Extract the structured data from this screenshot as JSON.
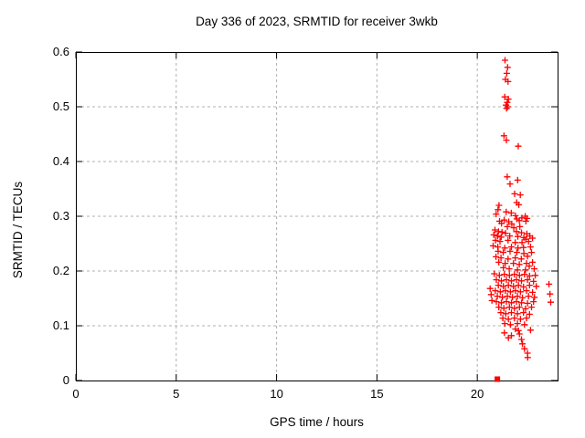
{
  "chart_data": {
    "type": "scatter",
    "title": "Day 336 of 2023, SRMTID for receiver 3wkb",
    "xlabel": "GPS time / hours",
    "ylabel": "SRMTID / TECUs",
    "xlim": [
      0,
      24
    ],
    "ylim": [
      0,
      0.6
    ],
    "grid": true,
    "legend": "none",
    "xticks": [
      {
        "v": 0,
        "label": "0"
      },
      {
        "v": 5,
        "label": "5"
      },
      {
        "v": 10,
        "label": "10"
      },
      {
        "v": 15,
        "label": "15"
      },
      {
        "v": 20,
        "label": "20"
      }
    ],
    "yticks": [
      {
        "v": 0,
        "label": "0"
      },
      {
        "v": 0.1,
        "label": "0.1"
      },
      {
        "v": 0.2,
        "label": "0.2"
      },
      {
        "v": 0.3,
        "label": "0.3"
      },
      {
        "v": 0.4,
        "label": "0.4"
      },
      {
        "v": 0.5,
        "label": "0.5"
      },
      {
        "v": 0.6,
        "label": "0.6"
      }
    ],
    "colors": {
      "marker": "#ff0000",
      "grid": "#b0b0b0",
      "border": "#000000",
      "background": "#ffffff"
    },
    "marker": "plus",
    "zero_marker": {
      "shape": "filled-square",
      "t": 21.0,
      "v": 0.0
    },
    "points": [
      [
        21.38,
        0.585
      ],
      [
        21.51,
        0.572
      ],
      [
        21.47,
        0.561
      ],
      [
        21.4,
        0.55
      ],
      [
        21.53,
        0.546
      ],
      [
        21.37,
        0.518
      ],
      [
        21.55,
        0.514
      ],
      [
        21.49,
        0.508
      ],
      [
        21.43,
        0.503
      ],
      [
        21.52,
        0.5
      ],
      [
        21.46,
        0.497
      ],
      [
        21.33,
        0.447
      ],
      [
        21.45,
        0.439
      ],
      [
        22.04,
        0.428
      ],
      [
        21.49,
        0.372
      ],
      [
        21.63,
        0.359
      ],
      [
        22.01,
        0.366
      ],
      [
        21.86,
        0.341
      ],
      [
        22.14,
        0.339
      ],
      [
        21.96,
        0.325
      ],
      [
        22.07,
        0.321
      ],
      [
        21.08,
        0.32
      ],
      [
        21.03,
        0.312
      ],
      [
        20.94,
        0.304
      ],
      [
        21.44,
        0.308
      ],
      [
        21.69,
        0.306
      ],
      [
        21.9,
        0.301
      ],
      [
        22.39,
        0.3
      ],
      [
        22.48,
        0.296
      ],
      [
        21.11,
        0.291
      ],
      [
        21.34,
        0.293
      ],
      [
        21.57,
        0.29
      ],
      [
        21.97,
        0.295
      ],
      [
        22.09,
        0.292
      ],
      [
        22.22,
        0.297
      ],
      [
        22.42,
        0.291
      ],
      [
        21.21,
        0.287
      ],
      [
        21.72,
        0.286
      ],
      [
        21.5,
        0.281
      ],
      [
        21.82,
        0.279
      ],
      [
        22.12,
        0.281
      ],
      [
        20.88,
        0.275
      ],
      [
        21.06,
        0.272
      ],
      [
        21.23,
        0.271
      ],
      [
        21.41,
        0.269
      ],
      [
        21.95,
        0.272
      ],
      [
        22.2,
        0.27
      ],
      [
        22.47,
        0.268
      ],
      [
        20.82,
        0.266
      ],
      [
        21.01,
        0.264
      ],
      [
        21.19,
        0.262
      ],
      [
        21.62,
        0.264
      ],
      [
        22.02,
        0.263
      ],
      [
        22.32,
        0.261
      ],
      [
        22.62,
        0.264
      ],
      [
        22.75,
        0.26
      ],
      [
        20.91,
        0.256
      ],
      [
        21.13,
        0.254
      ],
      [
        21.53,
        0.256
      ],
      [
        21.89,
        0.252
      ],
      [
        22.23,
        0.252
      ],
      [
        22.55,
        0.254
      ],
      [
        22.42,
        0.258
      ],
      [
        20.79,
        0.246
      ],
      [
        21.02,
        0.244
      ],
      [
        21.37,
        0.242
      ],
      [
        21.7,
        0.244
      ],
      [
        22.03,
        0.242
      ],
      [
        22.3,
        0.243
      ],
      [
        22.65,
        0.244
      ],
      [
        21.04,
        0.236
      ],
      [
        21.29,
        0.234
      ],
      [
        21.63,
        0.236
      ],
      [
        21.97,
        0.234
      ],
      [
        22.32,
        0.232
      ],
      [
        22.7,
        0.234
      ],
      [
        20.93,
        0.226
      ],
      [
        21.18,
        0.224
      ],
      [
        21.53,
        0.222
      ],
      [
        21.89,
        0.224
      ],
      [
        22.19,
        0.222
      ],
      [
        22.5,
        0.227
      ],
      [
        21.07,
        0.216
      ],
      [
        21.39,
        0.214
      ],
      [
        21.8,
        0.214
      ],
      [
        22.09,
        0.212
      ],
      [
        22.45,
        0.214
      ],
      [
        22.75,
        0.216
      ],
      [
        21.3,
        0.206
      ],
      [
        21.59,
        0.204
      ],
      [
        22.0,
        0.202
      ],
      [
        22.4,
        0.202
      ],
      [
        22.84,
        0.204
      ],
      [
        22.59,
        0.209
      ],
      [
        20.85,
        0.195
      ],
      [
        21.1,
        0.192
      ],
      [
        21.35,
        0.194
      ],
      [
        21.6,
        0.192
      ],
      [
        21.85,
        0.194
      ],
      [
        22.1,
        0.192
      ],
      [
        22.35,
        0.194
      ],
      [
        22.6,
        0.191
      ],
      [
        22.89,
        0.192
      ],
      [
        23.57,
        0.176
      ],
      [
        20.95,
        0.184
      ],
      [
        21.2,
        0.182
      ],
      [
        21.45,
        0.184
      ],
      [
        21.7,
        0.182
      ],
      [
        21.95,
        0.184
      ],
      [
        22.2,
        0.182
      ],
      [
        22.5,
        0.184
      ],
      [
        22.8,
        0.181
      ],
      [
        21.05,
        0.174
      ],
      [
        21.3,
        0.172
      ],
      [
        21.55,
        0.174
      ],
      [
        21.8,
        0.172
      ],
      [
        22.05,
        0.174
      ],
      [
        22.3,
        0.171
      ],
      [
        22.6,
        0.174
      ],
      [
        22.94,
        0.172
      ],
      [
        20.64,
        0.168
      ],
      [
        20.9,
        0.164
      ],
      [
        21.15,
        0.162
      ],
      [
        21.4,
        0.164
      ],
      [
        21.65,
        0.162
      ],
      [
        21.9,
        0.164
      ],
      [
        22.15,
        0.162
      ],
      [
        22.45,
        0.164
      ],
      [
        22.75,
        0.161
      ],
      [
        23.62,
        0.158
      ],
      [
        20.69,
        0.157
      ],
      [
        21.0,
        0.154
      ],
      [
        21.25,
        0.152
      ],
      [
        21.5,
        0.154
      ],
      [
        21.75,
        0.152
      ],
      [
        22.0,
        0.154
      ],
      [
        22.25,
        0.151
      ],
      [
        22.55,
        0.154
      ],
      [
        22.85,
        0.152
      ],
      [
        20.73,
        0.146
      ],
      [
        20.95,
        0.144
      ],
      [
        21.2,
        0.142
      ],
      [
        21.45,
        0.144
      ],
      [
        21.7,
        0.142
      ],
      [
        21.95,
        0.144
      ],
      [
        22.2,
        0.142
      ],
      [
        22.5,
        0.141
      ],
      [
        22.8,
        0.144
      ],
      [
        23.66,
        0.143
      ],
      [
        21.07,
        0.134
      ],
      [
        21.32,
        0.132
      ],
      [
        21.6,
        0.134
      ],
      [
        21.85,
        0.132
      ],
      [
        22.1,
        0.134
      ],
      [
        22.4,
        0.131
      ],
      [
        22.7,
        0.134
      ],
      [
        21.17,
        0.124
      ],
      [
        21.42,
        0.122
      ],
      [
        21.7,
        0.124
      ],
      [
        22.0,
        0.122
      ],
      [
        22.3,
        0.124
      ],
      [
        22.6,
        0.121
      ],
      [
        21.27,
        0.114
      ],
      [
        21.55,
        0.112
      ],
      [
        21.85,
        0.114
      ],
      [
        22.15,
        0.112
      ],
      [
        22.45,
        0.114
      ],
      [
        21.37,
        0.104
      ],
      [
        21.65,
        0.102
      ],
      [
        22.0,
        0.104
      ],
      [
        22.35,
        0.102
      ],
      [
        21.35,
        0.087
      ],
      [
        21.55,
        0.078
      ],
      [
        21.7,
        0.082
      ],
      [
        21.9,
        0.094
      ],
      [
        22.05,
        0.091
      ],
      [
        22.1,
        0.085
      ],
      [
        22.65,
        0.092
      ],
      [
        22.2,
        0.075
      ],
      [
        22.25,
        0.067
      ],
      [
        22.35,
        0.058
      ],
      [
        22.5,
        0.05
      ],
      [
        22.51,
        0.042
      ]
    ]
  }
}
